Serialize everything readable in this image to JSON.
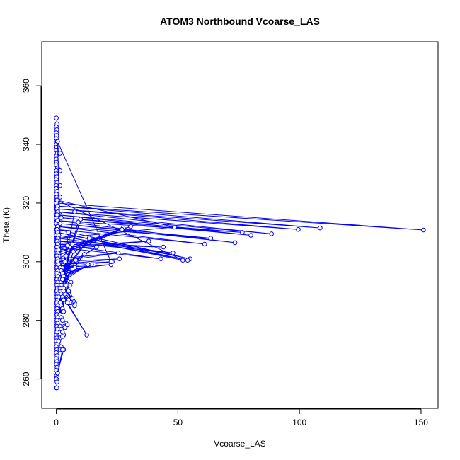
{
  "chart_data": {
    "type": "line",
    "title": "ATOM3 Northbound Vcoarse_LAS",
    "xlabel": "Vcoarse_LAS",
    "ylabel": "Theta (K)",
    "xlim": [
      -6,
      157
    ],
    "ylim": [
      250,
      375
    ],
    "xticks": [
      0,
      50,
      100,
      150
    ],
    "yticks": [
      260,
      280,
      300,
      320,
      340,
      360
    ],
    "grid": false,
    "legend": "none",
    "series": [
      {
        "color": "#0000ff",
        "marker": "open-circle",
        "points": [
          [
            0,
            349
          ],
          [
            0.3,
            347
          ],
          [
            0,
            346
          ],
          [
            0.2,
            345
          ],
          [
            0,
            344
          ],
          [
            0.1,
            343
          ],
          [
            0,
            342
          ],
          [
            0.3,
            341
          ],
          [
            0,
            340
          ],
          [
            0.2,
            339
          ],
          [
            0,
            338
          ],
          [
            0.4,
            337
          ],
          [
            0,
            336
          ],
          [
            1.5,
            337
          ],
          [
            0,
            335
          ],
          [
            0.2,
            334
          ],
          [
            0,
            333
          ],
          [
            0.5,
            332
          ],
          [
            0,
            331
          ],
          [
            1.5,
            331
          ],
          [
            0,
            330
          ],
          [
            0.2,
            329
          ],
          [
            0,
            328
          ],
          [
            0.3,
            327
          ],
          [
            0,
            326
          ],
          [
            1.5,
            326
          ],
          [
            0,
            325
          ],
          [
            0.3,
            324
          ],
          [
            0,
            323
          ],
          [
            0.2,
            322
          ],
          [
            1.5,
            322
          ],
          [
            0,
            321
          ],
          [
            0.4,
            320
          ],
          [
            0,
            319.5
          ],
          [
            0.2,
            319
          ],
          [
            0,
            318
          ],
          [
            0.3,
            317
          ],
          [
            0,
            316
          ],
          [
            1.5,
            316
          ],
          [
            0,
            315
          ],
          [
            0.2,
            314
          ],
          [
            0,
            313
          ],
          [
            0.5,
            312
          ],
          [
            0,
            311
          ],
          [
            0.3,
            310
          ],
          [
            0,
            309
          ],
          [
            0.2,
            308
          ],
          [
            0,
            307
          ],
          [
            0.4,
            306
          ],
          [
            0,
            305
          ],
          [
            0.3,
            304
          ],
          [
            0,
            303
          ],
          [
            0.2,
            302
          ],
          [
            0,
            301
          ],
          [
            0.3,
            300
          ],
          [
            0,
            299
          ],
          [
            0.2,
            298
          ],
          [
            0,
            297
          ],
          [
            0.3,
            296
          ],
          [
            0,
            295
          ],
          [
            0.2,
            294
          ],
          [
            0,
            293
          ],
          [
            0.3,
            292
          ],
          [
            0,
            291
          ],
          [
            0.2,
            290
          ],
          [
            0,
            289
          ],
          [
            0.3,
            288
          ],
          [
            0,
            287
          ],
          [
            0.2,
            286
          ],
          [
            0,
            285
          ],
          [
            0.3,
            284
          ],
          [
            0,
            283
          ],
          [
            0.2,
            282
          ],
          [
            0,
            281
          ],
          [
            0.3,
            280
          ],
          [
            0,
            279
          ],
          [
            0.2,
            278
          ],
          [
            0,
            277
          ],
          [
            0.3,
            276
          ],
          [
            0,
            275
          ],
          [
            0.2,
            274
          ],
          [
            0,
            273
          ],
          [
            0.3,
            272
          ],
          [
            0,
            271
          ],
          [
            0.2,
            270
          ],
          [
            0,
            269
          ],
          [
            0.3,
            268
          ],
          [
            0,
            267
          ],
          [
            0.2,
            266
          ],
          [
            0,
            265
          ],
          [
            0.3,
            264
          ],
          [
            0,
            263
          ],
          [
            0.5,
            262
          ],
          [
            0,
            261
          ],
          [
            0.3,
            260.5
          ],
          [
            0,
            260
          ],
          [
            0.3,
            259
          ],
          [
            0,
            257
          ],
          [
            0.2,
            257
          ]
        ]
      },
      {
        "color": "#0000ff",
        "marker": "open-circle",
        "points": [
          [
            0,
            320
          ],
          [
            151,
            310.8
          ],
          [
            0.5,
            319
          ],
          [
            108.5,
            311.5
          ],
          [
            0.3,
            318
          ],
          [
            99.5,
            311
          ],
          [
            0.5,
            317
          ],
          [
            88.5,
            309.5
          ],
          [
            0.3,
            316
          ],
          [
            80,
            309
          ],
          [
            2,
            315
          ],
          [
            76.5,
            310
          ],
          [
            0.5,
            314
          ],
          [
            73.5,
            306.5
          ],
          [
            1.5,
            313
          ],
          [
            63.5,
            308
          ],
          [
            0.5,
            312
          ],
          [
            61,
            306
          ],
          [
            0.3,
            311
          ],
          [
            55,
            301
          ],
          [
            0.5,
            310
          ],
          [
            54,
            300.5
          ],
          [
            1,
            309
          ],
          [
            52,
            300.5
          ],
          [
            0.3,
            321
          ],
          [
            48.5,
            311.8
          ],
          [
            0.5,
            308
          ],
          [
            48,
            303
          ],
          [
            0.3,
            307
          ],
          [
            44,
            305
          ],
          [
            0.5,
            306
          ],
          [
            43,
            301
          ],
          [
            0.3,
            305
          ],
          [
            38,
            307
          ],
          [
            1,
            304
          ],
          [
            30.5,
            312
          ],
          [
            0.5,
            303
          ],
          [
            27.5,
            311.5
          ],
          [
            0.3,
            302
          ],
          [
            27,
            311
          ],
          [
            0.5,
            301
          ],
          [
            25.5,
            303
          ],
          [
            0.3,
            300
          ],
          [
            26,
            301
          ],
          [
            0.5,
            299
          ],
          [
            23,
            300
          ],
          [
            0.3,
            298
          ],
          [
            22.5,
            299
          ],
          [
            0.5,
            297
          ],
          [
            16.5,
            305
          ],
          [
            0.3,
            296
          ],
          [
            15.5,
            299
          ],
          [
            0.5,
            295
          ],
          [
            14.5,
            299
          ],
          [
            0.3,
            294
          ],
          [
            13.5,
            308
          ],
          [
            0.5,
            293
          ],
          [
            13,
            299
          ],
          [
            0.3,
            292
          ],
          [
            12.5,
            275
          ],
          [
            0.5,
            291
          ],
          [
            11.5,
            302.5
          ],
          [
            0.3,
            290
          ],
          [
            10,
            314.5
          ],
          [
            0.5,
            289
          ],
          [
            9,
            313.5
          ],
          [
            0.3,
            288
          ],
          [
            8,
            300.5
          ],
          [
            0.5,
            287
          ],
          [
            7.5,
            317
          ],
          [
            0.3,
            286
          ],
          [
            7,
            303.5
          ],
          [
            0.5,
            285
          ],
          [
            6.5,
            306
          ],
          [
            0.3,
            284
          ],
          [
            6,
            297.5
          ],
          [
            0.5,
            283
          ],
          [
            5.5,
            305
          ],
          [
            0.3,
            282
          ],
          [
            5,
            310
          ],
          [
            0.5,
            281
          ],
          [
            4.5,
            305.5
          ],
          [
            0.3,
            280
          ],
          [
            4,
            302
          ],
          [
            0.5,
            279
          ],
          [
            3.5,
            300
          ],
          [
            0.3,
            278
          ],
          [
            3,
            299
          ],
          [
            0.5,
            277
          ],
          [
            2.5,
            298
          ],
          [
            0.3,
            276
          ],
          [
            2,
            297
          ],
          [
            0.5,
            341
          ],
          [
            22.5,
            300
          ]
        ]
      },
      {
        "color": "#0000ff",
        "marker": "open-circle",
        "points": [
          [
            0.5,
            300
          ],
          [
            7.5,
            298
          ],
          [
            1,
            299
          ],
          [
            6.5,
            297.5
          ],
          [
            1.5,
            298
          ],
          [
            6,
            293
          ],
          [
            2,
            297
          ],
          [
            5.5,
            292
          ],
          [
            2.5,
            296
          ],
          [
            5,
            290
          ],
          [
            3,
            295
          ],
          [
            7.5,
            286
          ],
          [
            1.5,
            294
          ],
          [
            7.5,
            285
          ],
          [
            2,
            293
          ],
          [
            7,
            286.5
          ],
          [
            2.5,
            292
          ],
          [
            6.5,
            287.5
          ],
          [
            3,
            291
          ],
          [
            6,
            286
          ],
          [
            1.5,
            290
          ],
          [
            5.5,
            286
          ],
          [
            2,
            289
          ],
          [
            5,
            287
          ],
          [
            2.5,
            288
          ],
          [
            4.5,
            286
          ],
          [
            3,
            287
          ],
          [
            4,
            292
          ],
          [
            1.5,
            286
          ],
          [
            3.5,
            289
          ],
          [
            2,
            285
          ],
          [
            3,
            290
          ],
          [
            2.5,
            284
          ],
          [
            2.5,
            294
          ],
          [
            3,
            283
          ],
          [
            2,
            292
          ],
          [
            1.5,
            282
          ],
          [
            1.5,
            291
          ],
          [
            2,
            281
          ],
          [
            1,
            288
          ],
          [
            2.5,
            280
          ],
          [
            4,
            279
          ],
          [
            1.5,
            278
          ],
          [
            3.5,
            277.5
          ],
          [
            2,
            277
          ],
          [
            4.5,
            278.5
          ],
          [
            2.5,
            276
          ],
          [
            3,
            275
          ],
          [
            1.5,
            274
          ],
          [
            2.5,
            274.5
          ],
          [
            1,
            273
          ],
          [
            2,
            271
          ],
          [
            1.5,
            270
          ],
          [
            3,
            270
          ],
          [
            0.5,
            262
          ],
          [
            2.5,
            270
          ]
        ]
      }
    ]
  }
}
